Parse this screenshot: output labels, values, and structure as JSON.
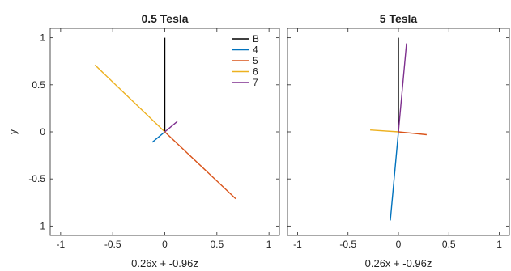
{
  "chart_data": [
    {
      "type": "line",
      "title": "0.5 Tesla",
      "xlabel": "0.26x + -0.96z",
      "ylabel": "y",
      "xlim": [
        -1.1,
        1.1
      ],
      "ylim": [
        -1.1,
        1.1
      ],
      "xticks": [
        "-1",
        "-0.5",
        "0",
        "0.5",
        "1"
      ],
      "yticks": [
        "-1",
        "-0.5",
        "0",
        "0.5",
        "1"
      ],
      "xtick_values": [
        -1,
        -0.5,
        0,
        0.5,
        1
      ],
      "ytick_values": [
        -1,
        -0.5,
        0,
        0.5,
        1
      ],
      "grid": false,
      "legend_position": "top-right",
      "series": [
        {
          "name": "B",
          "color": "#000000",
          "x": [
            0,
            0
          ],
          "y": [
            0,
            1.0
          ]
        },
        {
          "name": "4",
          "color": "#0072BD",
          "x": [
            0,
            -0.12
          ],
          "y": [
            0,
            -0.11
          ]
        },
        {
          "name": "5",
          "color": "#D95319",
          "x": [
            0,
            0.68
          ],
          "y": [
            0,
            -0.71
          ]
        },
        {
          "name": "6",
          "color": "#EDB120",
          "x": [
            0,
            -0.67
          ],
          "y": [
            0,
            0.71
          ]
        },
        {
          "name": "7",
          "color": "#7E2F8E",
          "x": [
            0,
            0.12
          ],
          "y": [
            0,
            0.11
          ]
        }
      ]
    },
    {
      "type": "line",
      "title": "5 Tesla",
      "xlabel": "0.26x + -0.96z",
      "ylabel": "",
      "xlim": [
        -1.1,
        1.1
      ],
      "ylim": [
        -1.1,
        1.1
      ],
      "xticks": [
        "-1",
        "-0.5",
        "0",
        "0.5",
        "1"
      ],
      "yticks": [],
      "xtick_values": [
        -1,
        -0.5,
        0,
        0.5,
        1
      ],
      "ytick_values": [
        -1,
        -0.5,
        0,
        0.5,
        1
      ],
      "grid": false,
      "legend_position": "",
      "series": [
        {
          "color": "#000000",
          "x": [
            0,
            0
          ],
          "y": [
            0,
            1.0
          ]
        },
        {
          "color": "#0072BD",
          "x": [
            0,
            -0.08
          ],
          "y": [
            0,
            -0.94
          ]
        },
        {
          "color": "#D95319",
          "x": [
            0,
            0.28
          ],
          "y": [
            0,
            -0.03
          ]
        },
        {
          "color": "#EDB120",
          "x": [
            0,
            -0.28
          ],
          "y": [
            0,
            0.02
          ]
        },
        {
          "color": "#7E2F8E",
          "x": [
            0,
            0.08
          ],
          "y": [
            0,
            0.94
          ]
        }
      ]
    }
  ]
}
